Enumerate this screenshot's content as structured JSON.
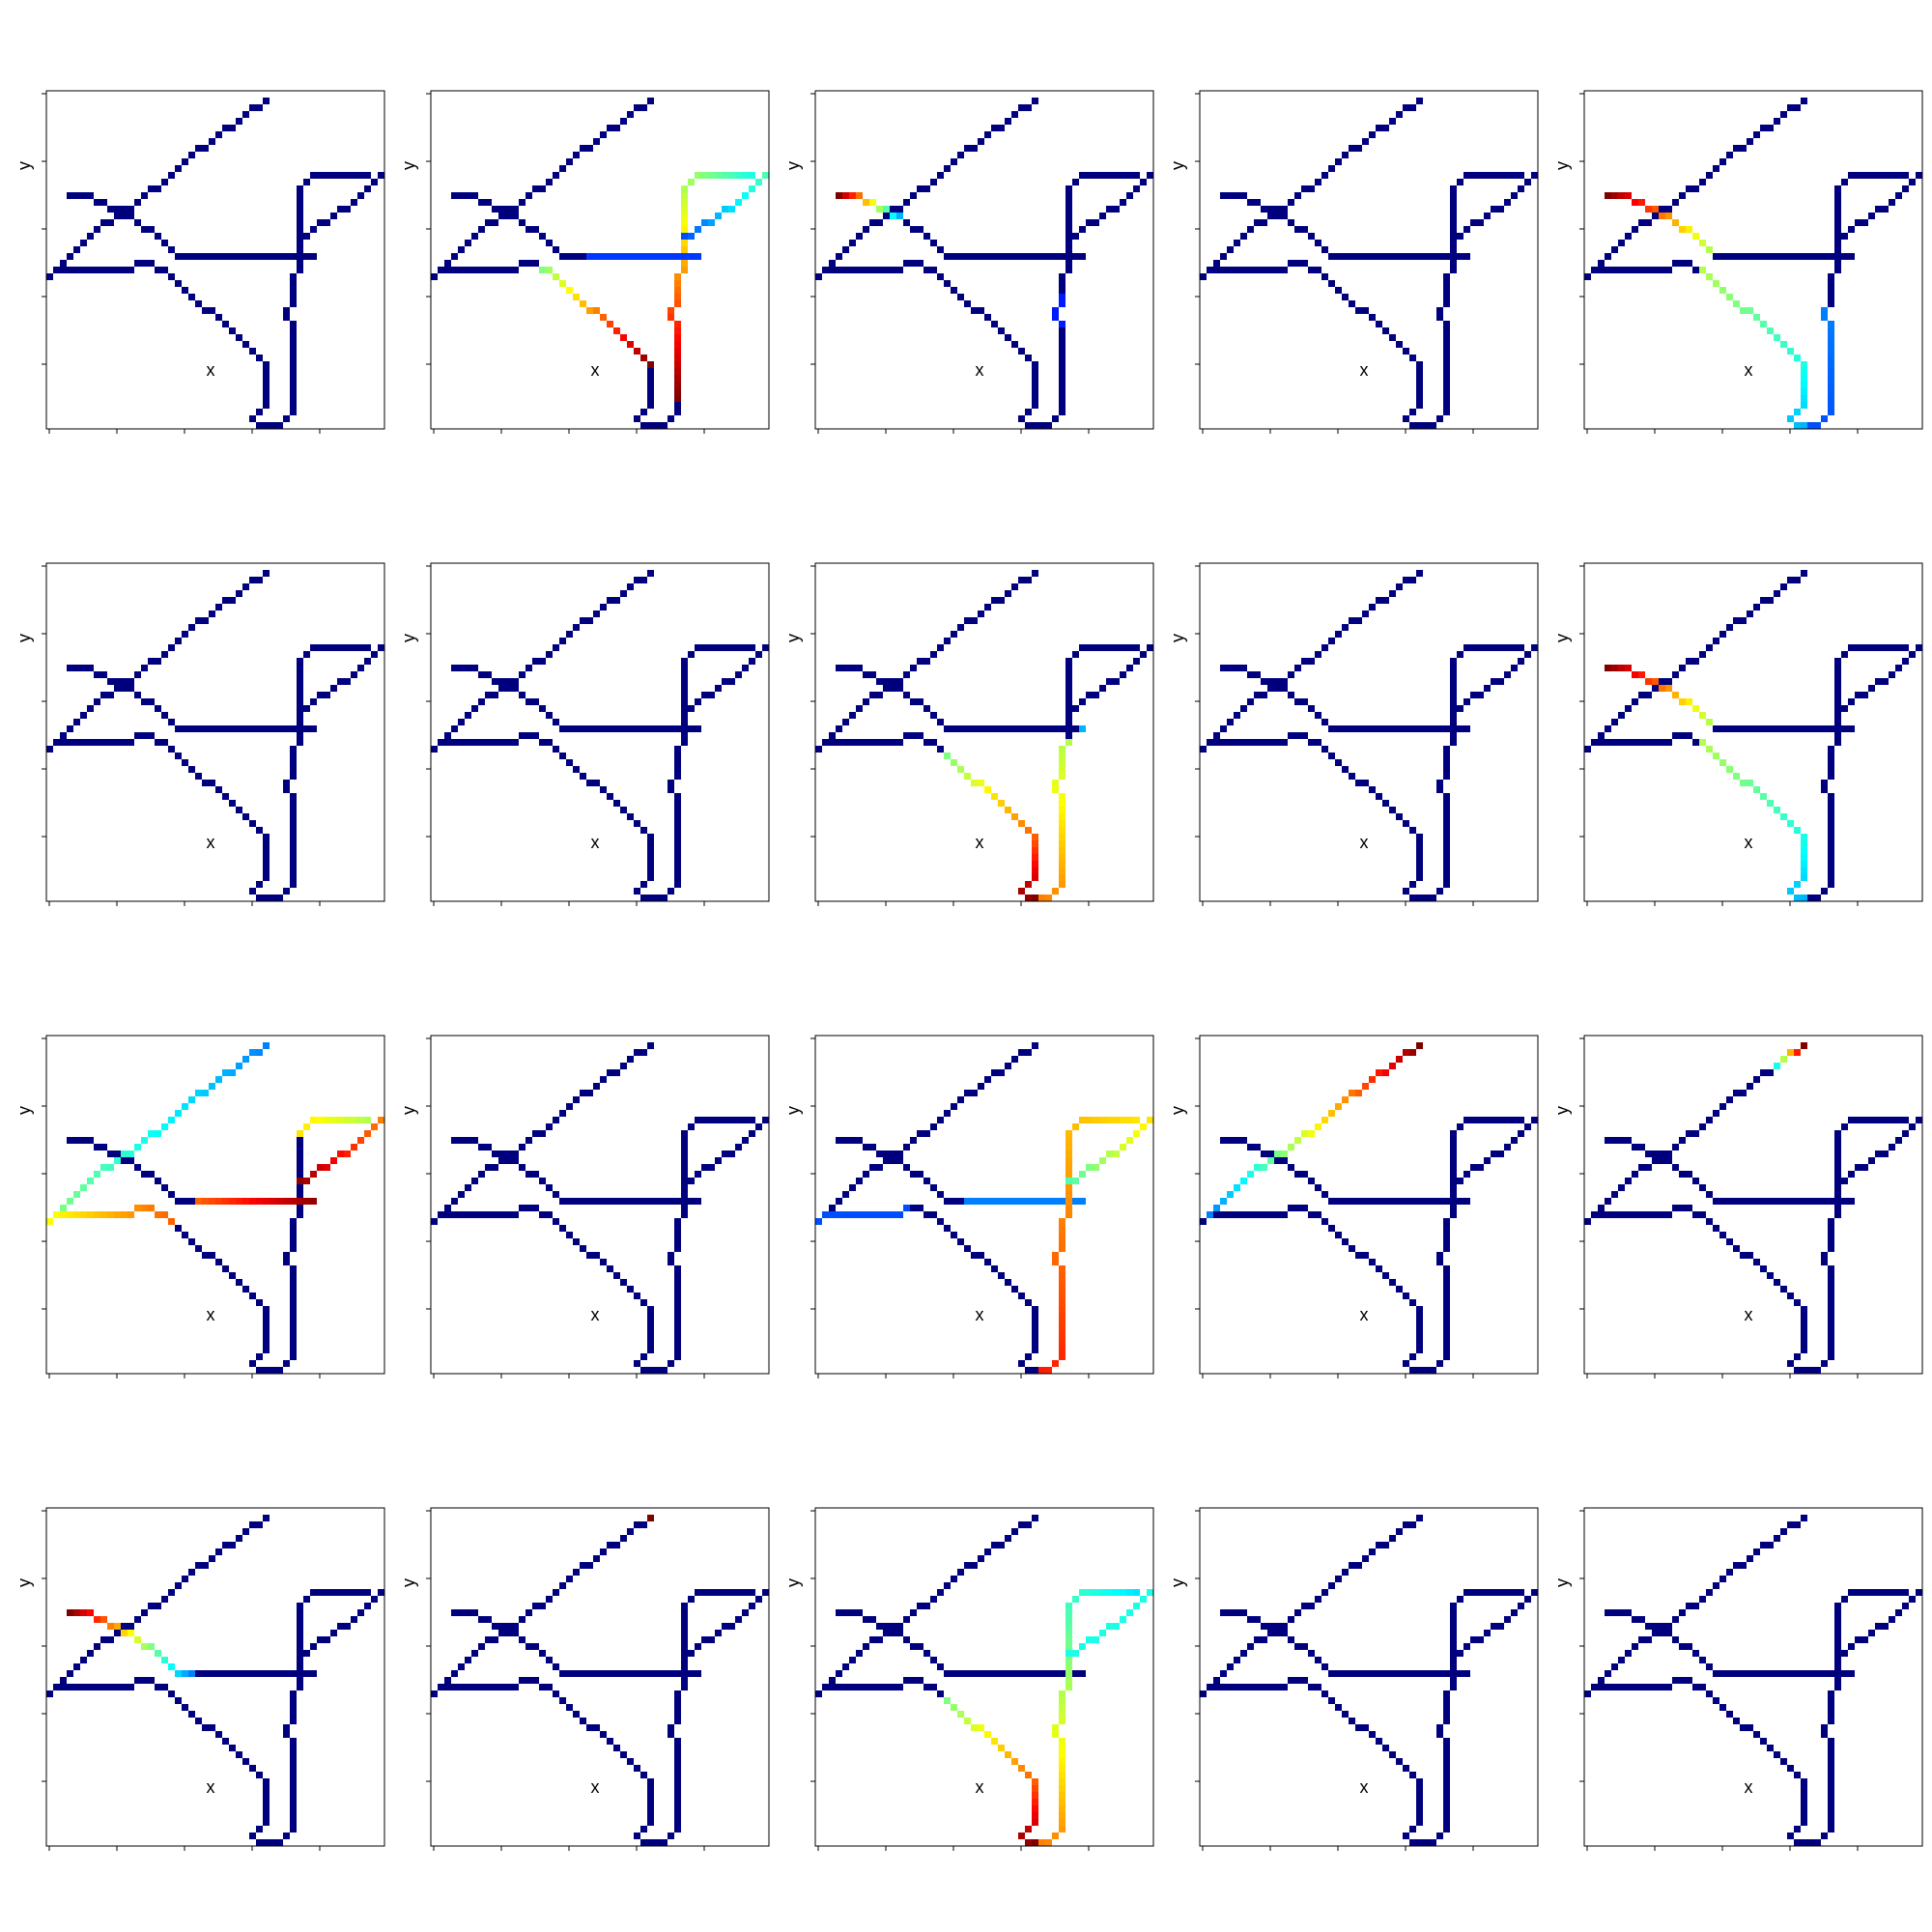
{
  "network": {
    "grid_size": 50,
    "paths": [
      [
        [
          2,
          24
        ],
        [
          3,
          25
        ],
        [
          4,
          26
        ],
        [
          5,
          27
        ],
        [
          6,
          28
        ],
        [
          7,
          29
        ],
        [
          8,
          30
        ],
        [
          9,
          31
        ],
        [
          10,
          31
        ],
        [
          11,
          32
        ],
        [
          12,
          33
        ],
        [
          13,
          33
        ],
        [
          14,
          34
        ],
        [
          15,
          35
        ],
        [
          16,
          36
        ],
        [
          17,
          36
        ],
        [
          18,
          37
        ],
        [
          19,
          38
        ],
        [
          20,
          39
        ],
        [
          21,
          40
        ],
        [
          22,
          41
        ],
        [
          23,
          42
        ],
        [
          24,
          42
        ],
        [
          25,
          43
        ],
        [
          26,
          44
        ],
        [
          27,
          45
        ],
        [
          28,
          45
        ],
        [
          29,
          46
        ],
        [
          30,
          47
        ],
        [
          31,
          48
        ],
        [
          32,
          48
        ],
        [
          33,
          49
        ]
      ],
      [
        [
          4,
          35
        ],
        [
          5,
          35
        ],
        [
          6,
          35
        ],
        [
          7,
          35
        ],
        [
          8,
          34
        ],
        [
          9,
          34
        ],
        [
          10,
          33
        ],
        [
          11,
          33
        ],
        [
          12,
          32
        ],
        [
          13,
          32
        ],
        [
          14,
          31
        ],
        [
          15,
          30
        ],
        [
          16,
          30
        ],
        [
          17,
          29
        ],
        [
          18,
          28
        ],
        [
          19,
          27
        ],
        [
          20,
          26
        ],
        [
          21,
          26
        ],
        [
          22,
          26
        ],
        [
          23,
          26
        ],
        [
          24,
          26
        ],
        [
          25,
          26
        ],
        [
          26,
          26
        ],
        [
          27,
          26
        ],
        [
          28,
          26
        ],
        [
          29,
          26
        ],
        [
          30,
          26
        ],
        [
          31,
          26
        ],
        [
          32,
          26
        ],
        [
          33,
          26
        ],
        [
          34,
          26
        ],
        [
          35,
          26
        ],
        [
          36,
          26
        ],
        [
          37,
          26
        ],
        [
          38,
          26
        ],
        [
          39,
          26
        ],
        [
          40,
          26
        ]
      ],
      [
        [
          1,
          23
        ],
        [
          2,
          24
        ],
        [
          3,
          24
        ],
        [
          4,
          24
        ],
        [
          5,
          24
        ],
        [
          6,
          24
        ],
        [
          7,
          24
        ],
        [
          8,
          24
        ],
        [
          9,
          24
        ],
        [
          10,
          24
        ],
        [
          11,
          24
        ],
        [
          12,
          24
        ],
        [
          13,
          24
        ],
        [
          14,
          25
        ],
        [
          15,
          25
        ],
        [
          16,
          25
        ],
        [
          17,
          24
        ],
        [
          18,
          24
        ],
        [
          19,
          23
        ],
        [
          20,
          22
        ],
        [
          21,
          21
        ],
        [
          22,
          20
        ],
        [
          23,
          19
        ],
        [
          24,
          18
        ],
        [
          25,
          18
        ],
        [
          26,
          17
        ],
        [
          27,
          16
        ],
        [
          28,
          15
        ],
        [
          29,
          14
        ],
        [
          30,
          13
        ],
        [
          31,
          12
        ],
        [
          32,
          11
        ],
        [
          33,
          10
        ],
        [
          33,
          9
        ],
        [
          33,
          8
        ],
        [
          33,
          7
        ],
        [
          33,
          6
        ],
        [
          33,
          5
        ],
        [
          33,
          4
        ],
        [
          32,
          3
        ],
        [
          31,
          2
        ],
        [
          32,
          1
        ],
        [
          33,
          1
        ]
      ],
      [
        [
          48,
          38
        ],
        [
          47,
          38
        ],
        [
          46,
          38
        ],
        [
          45,
          38
        ],
        [
          44,
          38
        ],
        [
          43,
          38
        ],
        [
          42,
          38
        ],
        [
          41,
          38
        ],
        [
          40,
          38
        ],
        [
          39,
          37
        ],
        [
          38,
          36
        ],
        [
          38,
          35
        ],
        [
          38,
          34
        ],
        [
          38,
          33
        ],
        [
          38,
          32
        ],
        [
          38,
          31
        ],
        [
          38,
          30
        ],
        [
          38,
          29
        ],
        [
          38,
          28
        ],
        [
          38,
          27
        ],
        [
          38,
          26
        ],
        [
          38,
          25
        ],
        [
          38,
          24
        ],
        [
          37,
          23
        ],
        [
          37,
          22
        ],
        [
          37,
          21
        ],
        [
          37,
          20
        ],
        [
          37,
          19
        ],
        [
          36,
          18
        ],
        [
          36,
          17
        ],
        [
          37,
          16
        ],
        [
          37,
          15
        ],
        [
          37,
          14
        ],
        [
          37,
          13
        ],
        [
          37,
          12
        ],
        [
          37,
          11
        ],
        [
          37,
          10
        ],
        [
          37,
          9
        ],
        [
          37,
          8
        ],
        [
          37,
          7
        ],
        [
          37,
          6
        ],
        [
          37,
          5
        ],
        [
          37,
          4
        ],
        [
          37,
          3
        ],
        [
          36,
          2
        ],
        [
          35,
          1
        ],
        [
          34,
          1
        ]
      ],
      [
        [
          50,
          38
        ],
        [
          49,
          37
        ],
        [
          48,
          36
        ],
        [
          47,
          35
        ],
        [
          46,
          34
        ],
        [
          45,
          33
        ],
        [
          44,
          33
        ],
        [
          43,
          32
        ],
        [
          42,
          31
        ],
        [
          41,
          31
        ],
        [
          40,
          30
        ],
        [
          39,
          29
        ],
        [
          38,
          29
        ]
      ]
    ]
  },
  "panels": [
    {
      "xlabel": "x",
      "ylabel": "y",
      "highlight": []
    },
    {
      "xlabel": "x",
      "ylabel": "y",
      "highlight": [
        {
          "path": 2,
          "from": 16,
          "to": 32,
          "hue": [
            0.5,
            1.0
          ]
        },
        {
          "path": 3,
          "from": 0,
          "to": 41,
          "hue": [
            0.4,
            1.0
          ]
        },
        {
          "path": 4,
          "from": 0,
          "to": 12,
          "hue": [
            0.45,
            0.2
          ]
        },
        {
          "path": 1,
          "from": 20,
          "to": 36,
          "hue": [
            0.18,
            0.18
          ]
        }
      ]
    },
    {
      "xlabel": "x",
      "ylabel": "y",
      "highlight": [
        {
          "path": 1,
          "from": 0,
          "to": 9,
          "hue": [
            1.0,
            0.3
          ]
        },
        {
          "path": 3,
          "from": 26,
          "to": 30,
          "hue": [
            0.15,
            0.15
          ]
        }
      ]
    },
    {
      "xlabel": "x",
      "ylabel": "y",
      "highlight": []
    },
    {
      "xlabel": "x",
      "ylabel": "y",
      "highlight": [
        {
          "path": 1,
          "from": 0,
          "to": 15,
          "hue": [
            1.0,
            0.55
          ]
        },
        {
          "path": 2,
          "from": 17,
          "to": 42,
          "hue": [
            0.55,
            0.3
          ]
        },
        {
          "path": 3,
          "from": 28,
          "to": 46,
          "hue": [
            0.25,
            0.2
          ]
        }
      ]
    },
    {
      "xlabel": "x",
      "ylabel": "y",
      "highlight": []
    },
    {
      "xlabel": "x",
      "ylabel": "y",
      "highlight": []
    },
    {
      "xlabel": "x",
      "ylabel": "y",
      "highlight": [
        {
          "path": 2,
          "from": 19,
          "to": 42,
          "hue": [
            0.5,
            1.0
          ]
        },
        {
          "path": 3,
          "from": 22,
          "to": 46,
          "hue": [
            0.55,
            0.75
          ]
        },
        {
          "path": 1,
          "from": 36,
          "to": 36,
          "hue": [
            0.3,
            0.3
          ]
        }
      ]
    },
    {
      "xlabel": "x",
      "ylabel": "y",
      "highlight": []
    },
    {
      "xlabel": "x",
      "ylabel": "y",
      "highlight": [
        {
          "path": 1,
          "from": 0,
          "to": 15,
          "hue": [
            1.0,
            0.55
          ]
        },
        {
          "path": 2,
          "from": 17,
          "to": 42,
          "hue": [
            0.55,
            0.3
          ]
        }
      ]
    },
    {
      "xlabel": "x",
      "ylabel": "y",
      "highlight": [
        {
          "path": 0,
          "from": 0,
          "to": 31,
          "hue": [
            0.5,
            0.25
          ]
        },
        {
          "path": 2,
          "from": 0,
          "to": 18,
          "hue": [
            0.62,
            0.78
          ]
        },
        {
          "path": 1,
          "from": 19,
          "to": 36,
          "hue": [
            0.78,
            0.98
          ]
        },
        {
          "path": 3,
          "from": 0,
          "to": 10,
          "hue": [
            0.55,
            0.65
          ]
        },
        {
          "path": 4,
          "from": 0,
          "to": 12,
          "hue": [
            0.75,
            0.98
          ]
        }
      ]
    },
    {
      "xlabel": "x",
      "ylabel": "y",
      "highlight": []
    },
    {
      "xlabel": "x",
      "ylabel": "y",
      "highlight": [
        {
          "path": 2,
          "from": 0,
          "to": 13,
          "hue": [
            0.2,
            0.2
          ]
        },
        {
          "path": 1,
          "from": 19,
          "to": 36,
          "hue": [
            0.25,
            0.25
          ]
        },
        {
          "path": 3,
          "from": 0,
          "to": 46,
          "hue": [
            0.65,
            0.85
          ]
        },
        {
          "path": 4,
          "from": 0,
          "to": 12,
          "hue": [
            0.65,
            0.45
          ]
        }
      ]
    },
    {
      "xlabel": "x",
      "ylabel": "y",
      "highlight": [
        {
          "path": 0,
          "from": 0,
          "to": 31,
          "hue": [
            0.25,
            1.0
          ]
        }
      ]
    },
    {
      "xlabel": "x",
      "ylabel": "y",
      "highlight": [
        {
          "path": 0,
          "from": 27,
          "to": 31,
          "hue": [
            0.4,
            1.0
          ]
        }
      ]
    },
    {
      "xlabel": "x",
      "ylabel": "y",
      "highlight": [
        {
          "path": 1,
          "from": 0,
          "to": 18,
          "hue": [
            1.0,
            0.25
          ]
        }
      ]
    },
    {
      "xlabel": "x",
      "ylabel": "y",
      "highlight": [
        {
          "path": 0,
          "from": 31,
          "to": 31,
          "hue": [
            1.0,
            1.0
          ]
        }
      ]
    },
    {
      "xlabel": "x",
      "ylabel": "y",
      "highlight": [
        {
          "path": 2,
          "from": 19,
          "to": 42,
          "hue": [
            0.5,
            1.0
          ]
        },
        {
          "path": 3,
          "from": 0,
          "to": 46,
          "hue": [
            0.35,
            0.75
          ]
        },
        {
          "path": 4,
          "from": 0,
          "to": 12,
          "hue": [
            0.4,
            0.4
          ]
        }
      ]
    },
    {
      "xlabel": "x",
      "ylabel": "y",
      "highlight": []
    },
    {
      "xlabel": "x",
      "ylabel": "y",
      "highlight": []
    }
  ],
  "colors": {
    "base": "#00007f",
    "frame": "#000000",
    "colormap": "jet"
  }
}
